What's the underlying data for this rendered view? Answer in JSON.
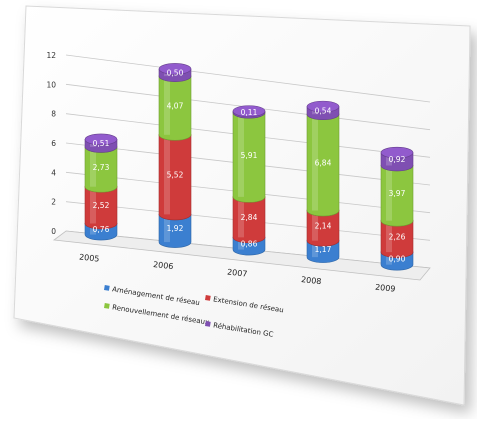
{
  "chart_data": {
    "type": "bar",
    "stacked": true,
    "categories": [
      "2005",
      "2006",
      "2007",
      "2008",
      "2009"
    ],
    "series": [
      {
        "name": "Aménagement de réseau",
        "color": "#3b7fd0",
        "values": [
          0.76,
          1.92,
          0.86,
          1.17,
          0.9
        ],
        "labels": [
          "0,76",
          "1,92",
          "0,86",
          "1,17",
          "0,90"
        ]
      },
      {
        "name": "Extension de réseau",
        "color": "#cf3b3b",
        "values": [
          2.52,
          5.52,
          2.84,
          2.14,
          2.26
        ],
        "labels": [
          "2,52",
          "5,52",
          "2,84",
          "2,14",
          "2,26"
        ]
      },
      {
        "name": "Renouvellement de réseaux",
        "color": "#8cc63f",
        "values": [
          2.73,
          4.07,
          5.91,
          6.84,
          3.97
        ],
        "labels": [
          "2,73",
          "4,07",
          "5,91",
          "6,84",
          "3,97"
        ]
      },
      {
        "name": "Réhabilitation GC",
        "color": "#7f4fb2",
        "values": [
          0.51,
          0.5,
          0.11,
          0.54,
          0.92
        ],
        "labels": [
          "0,51",
          "0,50",
          "0,11",
          "0,54",
          "0,92"
        ]
      }
    ],
    "yticks": [
      "0",
      "2",
      "4",
      "6",
      "8",
      "10",
      "12"
    ],
    "ylim": [
      0,
      12
    ],
    "grid": true,
    "legend_position": "bottom"
  }
}
